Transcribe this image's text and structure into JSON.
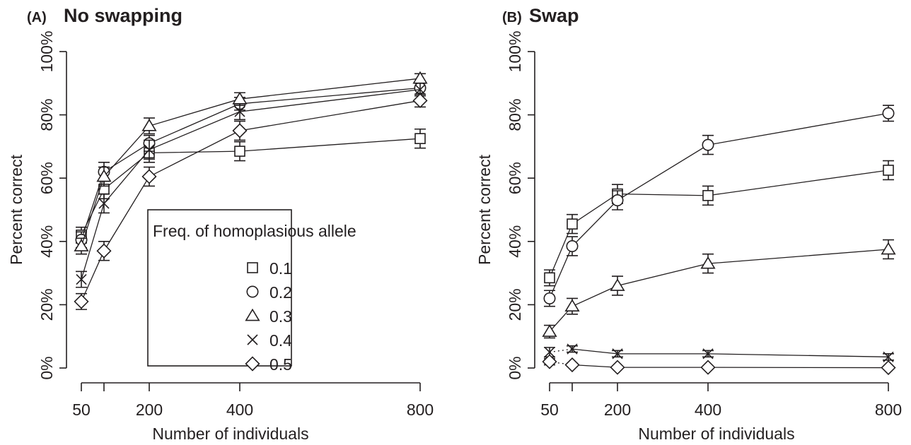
{
  "chart_data": [
    {
      "type": "line",
      "panel": "(A)",
      "title": "No swapping",
      "xlabel": "Number of individuals",
      "ylabel": "Percent correct",
      "x_ticks": [
        50,
        100,
        200,
        400,
        800
      ],
      "x_tick_labels": [
        "50",
        "",
        "200",
        "400",
        "800"
      ],
      "y_ticks": [
        0,
        20,
        40,
        60,
        80,
        100
      ],
      "y_tick_labels": [
        "0%",
        "20%",
        "40%",
        "60%",
        "80%",
        "100%"
      ],
      "ylim": [
        0,
        100
      ],
      "error_bars": true,
      "legend": {
        "title": "Freq. of homoplasious allele",
        "placement": "center"
      },
      "x": [
        50,
        100,
        200,
        400,
        800
      ],
      "series": [
        {
          "name": "0.1",
          "marker": "square",
          "values": [
            42,
            56.5,
            68,
            68.5,
            72.5
          ],
          "err": [
            2.5,
            3,
            3,
            3,
            3
          ]
        },
        {
          "name": "0.2",
          "marker": "circle",
          "values": [
            40.5,
            62,
            71,
            83.5,
            88.5
          ],
          "err": [
            2.5,
            3,
            2.5,
            2,
            2
          ]
        },
        {
          "name": "0.3",
          "marker": "triangle",
          "values": [
            38.5,
            60.5,
            76.5,
            85,
            91.5
          ],
          "err": [
            2.5,
            3,
            2.5,
            2,
            1.5
          ]
        },
        {
          "name": "0.4",
          "marker": "x",
          "values": [
            28,
            52,
            69,
            81,
            88
          ],
          "err": [
            2.5,
            3,
            3,
            2.5,
            2
          ]
        },
        {
          "name": "0.5",
          "marker": "diamond",
          "values": [
            21,
            37,
            60.5,
            75,
            84.5
          ],
          "err": [
            2.5,
            3,
            3,
            3,
            2
          ]
        }
      ]
    },
    {
      "type": "line",
      "panel": "(B)",
      "title": "Swap",
      "xlabel": "Number of individuals",
      "ylabel": "Percent correct",
      "x_ticks": [
        50,
        100,
        200,
        400,
        800
      ],
      "x_tick_labels": [
        "50",
        "",
        "200",
        "400",
        "800"
      ],
      "y_ticks": [
        0,
        20,
        40,
        60,
        80,
        100
      ],
      "y_tick_labels": [
        "0%",
        "20%",
        "40%",
        "60%",
        "80%",
        "100%"
      ],
      "ylim": [
        0,
        100
      ],
      "error_bars": true,
      "x": [
        50,
        100,
        200,
        400,
        800
      ],
      "series": [
        {
          "name": "0.1",
          "marker": "square",
          "values": [
            28.5,
            45.5,
            55,
            54.5,
            62.5
          ],
          "err": [
            2.5,
            3,
            3,
            3,
            3
          ]
        },
        {
          "name": "0.2",
          "marker": "circle",
          "values": [
            22,
            38.5,
            53,
            70.5,
            80.5
          ],
          "err": [
            2.5,
            3,
            3,
            3,
            2.5
          ]
        },
        {
          "name": "0.3",
          "marker": "triangle",
          "values": [
            11.5,
            19.5,
            26,
            33,
            37.5
          ],
          "err": [
            2,
            2.5,
            3,
            3,
            3
          ]
        },
        {
          "name": "0.4",
          "marker": "x",
          "values": [
            5,
            6,
            4.5,
            4.5,
            3.5
          ],
          "err": [
            1.5,
            1,
            1,
            1,
            1
          ]
        },
        {
          "name": "0.5",
          "marker": "diamond",
          "values": [
            2,
            1,
            0.2,
            0.2,
            0.1
          ],
          "err": [
            1,
            0.5,
            0.3,
            0.3,
            0.2
          ]
        }
      ]
    }
  ]
}
